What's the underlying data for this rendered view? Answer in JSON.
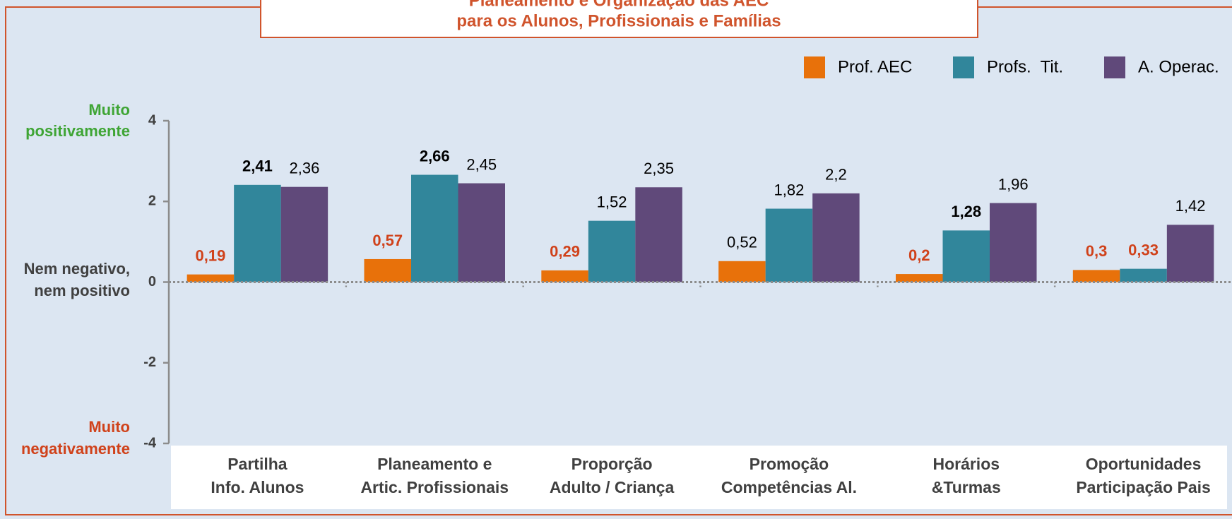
{
  "chart_data": {
    "type": "bar",
    "title": [
      "Planeamento e Organização das AEC",
      "para os Alunos, Profissionais e Famílias"
    ],
    "annotations": {
      "top": [
        "Muito",
        "positivamente"
      ],
      "middle": [
        "Nem negativo,",
        "nem positivo"
      ],
      "bottom": [
        "Muito",
        "negativamente"
      ]
    },
    "categories": [
      [
        "Partilha",
        "Info. Alunos"
      ],
      [
        "Planeamento e",
        "Artic. Profissionais"
      ],
      [
        "Proporção",
        "Adulto / Criança"
      ],
      [
        "Promoção",
        "Competências Al."
      ],
      [
        "Horários",
        "&Turmas"
      ],
      [
        "Oportunidades",
        "Participação Pais"
      ]
    ],
    "series": [
      {
        "name": "Prof. AEC",
        "color": "#e8710a",
        "values": [
          0.19,
          0.57,
          0.29,
          0.52,
          0.2,
          0.3
        ],
        "value_labels": [
          "0,19",
          "0,57",
          "0,29",
          "0,52",
          "0,2",
          "0,3"
        ]
      },
      {
        "name": "Profs.  Tit.",
        "color": "#31869b",
        "values": [
          2.41,
          2.66,
          1.52,
          1.82,
          1.28,
          0.33
        ],
        "value_labels": [
          "2,41",
          "2,66",
          "1,52",
          "1,82",
          "1,28",
          "0,33"
        ]
      },
      {
        "name": "A. Operac.",
        "color": "#60497a",
        "values": [
          2.36,
          2.45,
          2.35,
          2.2,
          1.96,
          1.42
        ],
        "value_labels": [
          "2,36",
          "2,45",
          "2,35",
          "2,2",
          "1,96",
          "1,42"
        ]
      }
    ],
    "ylim": [
      -4,
      4
    ],
    "yticks": [
      -4,
      -2,
      0,
      2,
      4
    ]
  }
}
